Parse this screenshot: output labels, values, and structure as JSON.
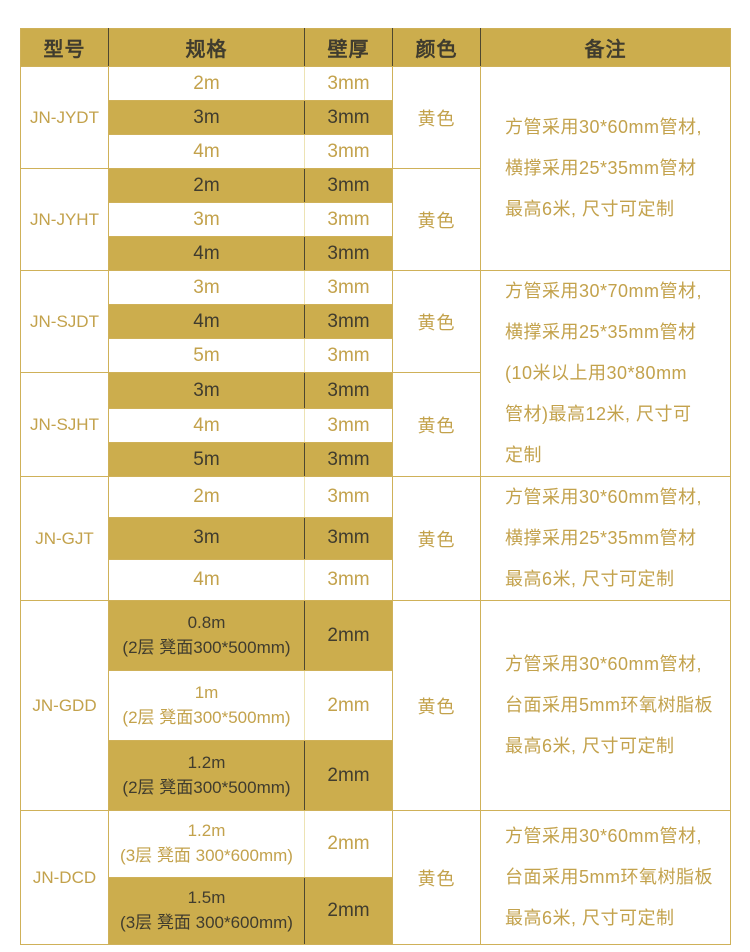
{
  "table": {
    "headers": {
      "model": "型号",
      "spec": "规格",
      "thickness": "壁厚",
      "color": "颜色",
      "remark": "备注"
    },
    "groups": [
      {
        "model": "JN-JYDT",
        "color": "黄色",
        "rows": [
          {
            "spec": "2m",
            "thickness": "3mm"
          },
          {
            "spec": "3m",
            "thickness": "3mm"
          },
          {
            "spec": "4m",
            "thickness": "3mm"
          }
        ]
      },
      {
        "model": "JN-JYHT",
        "color": "黄色",
        "rows": [
          {
            "spec": "2m",
            "thickness": "3mm"
          },
          {
            "spec": "3m",
            "thickness": "3mm"
          },
          {
            "spec": "4m",
            "thickness": "3mm"
          }
        ]
      },
      {
        "model": "JN-SJDT",
        "color": "黄色",
        "rows": [
          {
            "spec": "3m",
            "thickness": "3mm"
          },
          {
            "spec": "4m",
            "thickness": "3mm"
          },
          {
            "spec": "5m",
            "thickness": "3mm"
          }
        ]
      },
      {
        "model": "JN-SJHT",
        "color": "黄色",
        "rows": [
          {
            "spec": "3m",
            "thickness": "3mm"
          },
          {
            "spec": "4m",
            "thickness": "3mm"
          },
          {
            "spec": "5m",
            "thickness": "3mm"
          }
        ]
      },
      {
        "model": "JN-GJT",
        "color": "黄色",
        "rows": [
          {
            "spec": "2m",
            "thickness": "3mm"
          },
          {
            "spec": "3m",
            "thickness": "3mm"
          },
          {
            "spec": "4m",
            "thickness": "3mm"
          }
        ]
      },
      {
        "model": "JN-GDD",
        "color": "黄色",
        "rows": [
          {
            "spec": "0.8m\n(2层 凳面300*500mm)",
            "thickness": "2mm"
          },
          {
            "spec": "1m\n(2层 凳面300*500mm)",
            "thickness": "2mm"
          },
          {
            "spec": "1.2m\n(2层 凳面300*500mm)",
            "thickness": "2mm"
          }
        ]
      },
      {
        "model": "JN-DCD",
        "color": "黄色",
        "rows": [
          {
            "spec": "1.2m\n(3层 凳面 300*600mm)",
            "thickness": "2mm"
          },
          {
            "spec": "1.5m\n(3层 凳面 300*600mm)",
            "thickness": "2mm"
          }
        ]
      }
    ],
    "remarks": [
      "方管采用30*60mm管材,\n横撑采用25*35mm管材\n最高6米, 尺寸可定制",
      "方管采用30*70mm管材,\n横撑采用25*35mm管材\n(10米以上用30*80mm\n管材)最高12米, 尺寸可\n定制",
      "方管采用30*60mm管材,\n横撑采用25*35mm管材\n最高6米, 尺寸可定制",
      "方管采用30*60mm管材,\n台面采用5mm环氧树脂板\n最高6米, 尺寸可定制",
      "方管采用30*60mm管材,\n台面采用5mm环氧树脂板\n最高6米, 尺寸可定制"
    ]
  },
  "colors": {
    "gold": "#ccad4d",
    "gold-text": "#c3a24c",
    "dark-text": "#403c2e",
    "border-gold": "#cfb159",
    "div-dark": "#4e4730",
    "div-pale": "#ede3b4",
    "page-bg": "#ffffff"
  }
}
